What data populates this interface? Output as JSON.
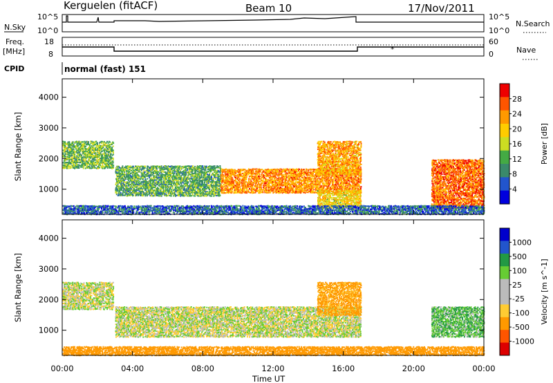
{
  "header": {
    "station": "Kerguelen (fitACF)",
    "beam": "Beam 10",
    "date": "17/Nov/2011"
  },
  "panels": {
    "nsky": {
      "left_label": "N.Sky",
      "right_label": "N.Search",
      "left_ticks": [
        "10^5",
        "10^0"
      ],
      "right_ticks": [
        "10^5",
        "10^0"
      ]
    },
    "freq": {
      "left_label_top": "Freq.",
      "left_label_unit": "[MHz]",
      "right_label": "Nave",
      "left_ticks": [
        "18",
        "8"
      ],
      "right_ticks": [
        "60",
        "0"
      ]
    },
    "cpid": {
      "left_label": "CPID",
      "mode_text": "normal (fast) 151"
    }
  },
  "colors": {
    "power_scale": [
      "#0000dd",
      "#2255cc",
      "#3a8a6a",
      "#44aa44",
      "#ccdd22",
      "#ffcc00",
      "#ff9900",
      "#ff5500",
      "#ee0000"
    ],
    "velocity_scale": [
      "#dd0000",
      "#ff5500",
      "#ff9900",
      "#ffcc33",
      "#bbbbbb",
      "#bbbbbb",
      "#66cc33",
      "#229944",
      "#2255cc",
      "#0000cc"
    ]
  },
  "chart_data": [
    {
      "type": "heatmap",
      "title": "",
      "xlabel": "Time UT",
      "ylabel": "Slant Range [km]",
      "xlim": [
        0,
        24
      ],
      "ylim": [
        180,
        4600
      ],
      "xticks": [
        "00:00",
        "04:00",
        "08:00",
        "12:00",
        "16:00",
        "20:00",
        "00:00"
      ],
      "yticks": [
        "1000",
        "2000",
        "3000",
        "4000"
      ],
      "colorbar": {
        "label": "Power [dB]",
        "ticks": [
          "28",
          "24",
          "20",
          "16",
          "12",
          "8",
          "4"
        ],
        "range": [
          0,
          30
        ]
      },
      "regions": [
        {
          "t": [
            0.0,
            2.9
          ],
          "r": [
            1700,
            2600
          ],
          "value": 12
        },
        {
          "t": [
            3.0,
            9.0
          ],
          "r": [
            800,
            1800
          ],
          "value": 11
        },
        {
          "t": [
            9.0,
            17.0
          ],
          "r": [
            900,
            1700
          ],
          "value": 22
        },
        {
          "t": [
            14.5,
            17.0
          ],
          "r": [
            1500,
            2600
          ],
          "value": 21
        },
        {
          "t": [
            14.5,
            17.0
          ],
          "r": [
            400,
            1000
          ],
          "value": 18
        },
        {
          "t": [
            21.0,
            24.0
          ],
          "r": [
            400,
            2000
          ],
          "value": 24
        },
        {
          "t": [
            0.0,
            24.0
          ],
          "r": [
            200,
            500
          ],
          "value": 6
        }
      ]
    },
    {
      "type": "heatmap",
      "title": "",
      "xlabel": "Time UT",
      "ylabel": "Slant Range [km]",
      "xlim": [
        0,
        24
      ],
      "ylim": [
        180,
        4600
      ],
      "xticks": [
        "00:00",
        "04:00",
        "08:00",
        "12:00",
        "16:00",
        "20:00",
        "00:00"
      ],
      "yticks": [
        "1000",
        "2000",
        "3000",
        "4000"
      ],
      "colorbar": {
        "label": "Velocity [m s^-1]",
        "ticks": [
          "1000",
          "500",
          "100",
          "25",
          "-25",
          "-100",
          "-500",
          "-1000"
        ],
        "range": [
          -1000,
          1000
        ]
      },
      "regions": [
        {
          "t": [
            0.0,
            2.9
          ],
          "r": [
            1700,
            2600
          ],
          "value": 0
        },
        {
          "t": [
            3.0,
            17.0
          ],
          "r": [
            800,
            1800
          ],
          "value": 0
        },
        {
          "t": [
            14.5,
            17.0
          ],
          "r": [
            1500,
            2600
          ],
          "value": -150
        },
        {
          "t": [
            21.0,
            24.0
          ],
          "r": [
            800,
            1800
          ],
          "value": 80
        },
        {
          "t": [
            0.0,
            24.0
          ],
          "r": [
            200,
            500
          ],
          "value": -300
        }
      ]
    }
  ]
}
